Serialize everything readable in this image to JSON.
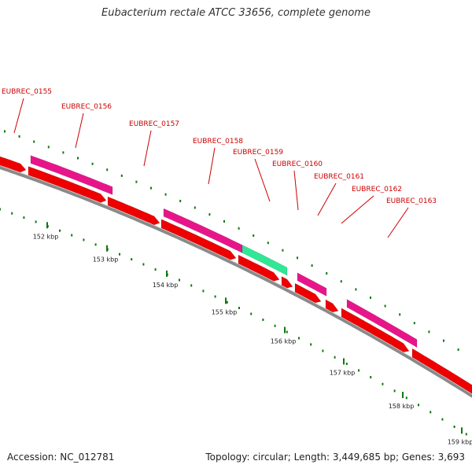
{
  "title": "Eubacterium rectale ATCC 33656, complete genome",
  "footer": {
    "accession": "Accession: NC_012781",
    "topology": "Topology: circular; Length: 3,449,685 bp; Genes: 3,693"
  },
  "colors": {
    "cds": "#ee0000",
    "gene_magenta": "#e8158a",
    "gene_green": "#2fe896",
    "backbone": "#888888",
    "tick_green": "#117711",
    "label_red": "#cc0000"
  },
  "kbp_ticks": [
    "152 kbp",
    "153 kbp",
    "154 kbp",
    "155 kbp",
    "156 kbp",
    "157 kbp",
    "158 kbp",
    "159 kbp"
  ],
  "gene_labels": [
    "EUBREC_0155",
    "EUBREC_0156",
    "EUBREC_0157",
    "EUBREC_0158",
    "EUBREC_0159",
    "EUBREC_0160",
    "EUBREC_0161",
    "EUBREC_0162",
    "EUBREC_0163"
  ]
}
